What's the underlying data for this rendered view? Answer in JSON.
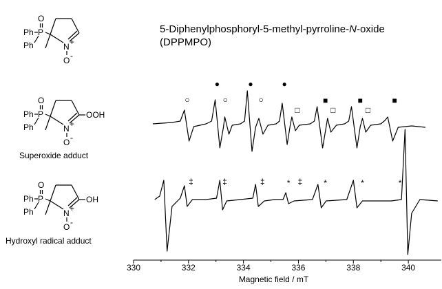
{
  "header": {
    "title": [
      "5-Diphenylphosphoryl-5-methyl-pyrroline-",
      "N",
      "-oxide"
    ],
    "subtitle": "(DPPMPO)"
  },
  "structures": [
    {
      "ph1": "Ph",
      "ph2": "Ph",
      "p": "P",
      "o": "O",
      "n": "N",
      "n_charge": "+",
      "o_minus": "O",
      "o_charge": "-",
      "substituent": null,
      "caption": null
    },
    {
      "ph1": "Ph",
      "ph2": "Ph",
      "p": "P",
      "o": "O",
      "n": "N",
      "n_charge": "+",
      "o_minus": "O",
      "o_charge": "-",
      "substituent": "OOH",
      "caption": "Superoxide adduct"
    },
    {
      "ph1": "Ph",
      "ph2": "Ph",
      "p": "P",
      "o": "O",
      "n": "N",
      "n_charge": "+",
      "o_minus": "O",
      "o_charge": "-",
      "substituent": "OH",
      "caption": "Hydroxyl radical adduct"
    }
  ],
  "chart_data": [
    {
      "type": "line",
      "xlim": [
        330,
        341.2
      ],
      "ylim": [
        -6.5,
        6.5
      ],
      "x": [
        330.7,
        331.4,
        331.7,
        331.85,
        332.02,
        332.19,
        332.64,
        332.84,
        332.97,
        333.14,
        333.27,
        333.32,
        333.47,
        333.59,
        333.89,
        334.04,
        334.14,
        334.31,
        334.44,
        334.56,
        334.71,
        334.89,
        335.19,
        335.31,
        335.41,
        335.59,
        335.71,
        335.76,
        335.89,
        336.03,
        336.43,
        336.58,
        336.68,
        336.88,
        337.01,
        337.06,
        337.18,
        337.38,
        337.68,
        337.83,
        337.93,
        338.13,
        338.25,
        338.33,
        338.45,
        338.63,
        339.0,
        339.15,
        339.25,
        339.43,
        339.63,
        340.12,
        340.62
      ],
      "series": [
        {
          "color": "#000000",
          "values": [
            0,
            0.2,
            0.4,
            2.0,
            -2.5,
            -0.4,
            0,
            0.4,
            3.5,
            -3.5,
            -0.5,
            1.0,
            -1.5,
            -0.2,
            0,
            0.4,
            4.8,
            -4.0,
            -0.5,
            0.8,
            -1.5,
            -0.2,
            0,
            0.4,
            3.0,
            -3.0,
            0,
            1.0,
            -1.0,
            -0.2,
            0,
            0.4,
            2.5,
            -3.5,
            -0.4,
            0.8,
            -1.2,
            -0.2,
            0,
            0.4,
            2.5,
            -3.5,
            -0.4,
            0.8,
            -1.2,
            -0.2,
            0,
            0.5,
            1.0,
            -2.5,
            -0.5,
            -0.3,
            -0.5
          ]
        }
      ],
      "markers": [
        {
          "symbol": "○",
          "x": [
            331.95,
            333.34,
            334.64
          ]
        },
        {
          "symbol": "●",
          "x": [
            333.04,
            334.26,
            335.49
          ]
        },
        {
          "symbol": "□",
          "x": [
            335.96,
            337.26,
            338.53
          ]
        },
        {
          "symbol": "■",
          "x": [
            336.98,
            338.25,
            339.5
          ]
        }
      ]
    },
    {
      "type": "line",
      "xlim": [
        330,
        341.2
      ],
      "ylim": [
        -8,
        11
      ],
      "x": [
        330.77,
        330.95,
        331.1,
        331.22,
        331.4,
        331.7,
        331.85,
        331.95,
        332.14,
        332.64,
        333.02,
        333.14,
        333.24,
        333.39,
        333.89,
        334.34,
        334.44,
        334.54,
        334.76,
        335.14,
        335.44,
        335.54,
        335.64,
        335.84,
        336.51,
        336.71,
        336.83,
        337.01,
        337.76,
        338.0,
        338.13,
        338.33,
        339.38,
        339.75,
        339.88,
        339.98,
        340.12,
        340.42,
        341.07
      ],
      "series": [
        {
          "color": "#000000",
          "values": [
            0,
            0.5,
            2.8,
            -7.5,
            -1.0,
            0.2,
            2.0,
            -1.0,
            0,
            0,
            0.2,
            2.8,
            -1.5,
            -0.2,
            0,
            0.2,
            2.2,
            -1.0,
            -0.2,
            0,
            0,
            1.0,
            -0.6,
            -0.2,
            0,
            2.2,
            -1.2,
            -0.2,
            0,
            2.8,
            -1.2,
            -0.2,
            -0.2,
            0,
            10.2,
            -8.0,
            -2.0,
            0,
            -0.2
          ]
        }
      ],
      "markers": [
        {
          "symbol": "‡",
          "x": [
            332.09,
            333.32,
            334.69,
            336.06
          ]
        },
        {
          "symbol": "*",
          "x": [
            335.64,
            336.98,
            338.33,
            339.7
          ]
        }
      ],
      "xticks": [
        330,
        332,
        334,
        336,
        338,
        340
      ],
      "xminorticks": [
        331,
        333,
        335,
        337,
        339
      ],
      "xlabel": "Magnetic field / mT"
    }
  ]
}
